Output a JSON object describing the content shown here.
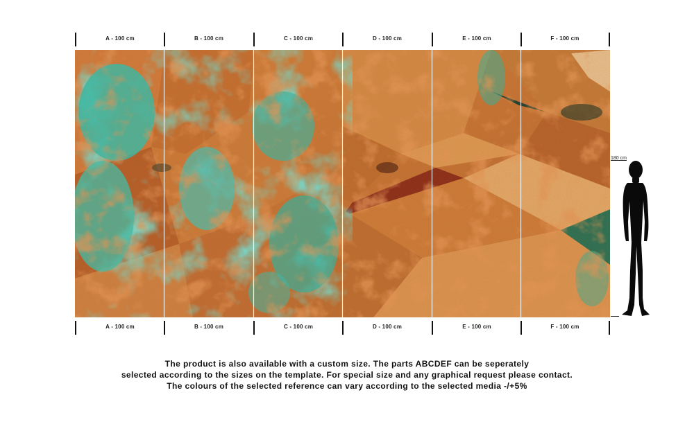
{
  "panels": [
    {
      "id": "A",
      "label": "A - 100 cm"
    },
    {
      "id": "B",
      "label": "B - 100 cm"
    },
    {
      "id": "C",
      "label": "C - 100 cm"
    },
    {
      "id": "D",
      "label": "D - 100 cm"
    },
    {
      "id": "E",
      "label": "E - 100 cm"
    },
    {
      "id": "F",
      "label": "F - 100 cm"
    }
  ],
  "height_reference": {
    "label": "180 cm",
    "icon": "human-silhouette-icon"
  },
  "notice": {
    "line1": "The product is also available with a custom size. The parts ABCDEF can be seperately",
    "line2": "selected according to the sizes on the template. For special size and any graphical request please contact.",
    "line3": "The colours of the selected reference can vary according to the selected media -/+5%"
  },
  "colors": {
    "rust": "#c8702a",
    "copper": "#e0974a",
    "turquoise": "#2cc6b8",
    "dark_red": "#a0301a",
    "silhouette": "#0a0a0a"
  }
}
